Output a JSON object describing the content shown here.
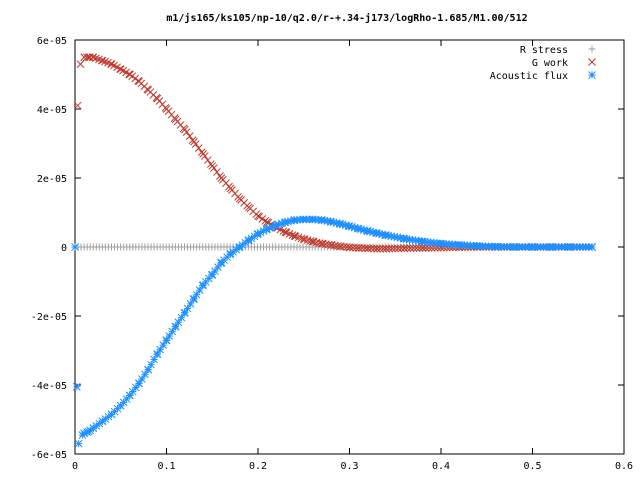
{
  "chart_data": {
    "type": "scatter",
    "title": "m1/js165/ks105/np-10/q2.0/r-+.34-j173/logRho-1.685/M1.00/512",
    "xlabel": "",
    "ylabel": "",
    "xlim": [
      0,
      0.6
    ],
    "ylim": [
      -6e-05,
      6e-05
    ],
    "x_ticks": [
      "0",
      "0.1",
      "0.2",
      "0.3",
      "0.4",
      "0.5",
      "0.6"
    ],
    "y_ticks": [
      "6e-05",
      "4e-05",
      "2e-05",
      "0",
      "-2e-05",
      "-4e-05",
      "-6e-05"
    ],
    "x_tick_values": [
      0,
      0.1,
      0.2,
      0.3,
      0.4,
      0.5,
      0.6
    ],
    "y_tick_values": [
      6e-05,
      4e-05,
      2e-05,
      0,
      -2e-05,
      -4e-05,
      -6e-05
    ],
    "grid": false,
    "legend_position": "top-right",
    "x_max_data": 0.565,
    "series": [
      {
        "name": "R stress",
        "marker": "plus",
        "color": "#a0a0a0",
        "x": [
          0,
          0.565
        ],
        "y": [
          0,
          0
        ]
      },
      {
        "name": "G work",
        "marker": "cross",
        "color": "#c0392b",
        "x": [
          0.003,
          0.006,
          0.01,
          0.015,
          0.02,
          0.03,
          0.04,
          0.05,
          0.06,
          0.07,
          0.08,
          0.09,
          0.1,
          0.11,
          0.12,
          0.13,
          0.14,
          0.15,
          0.16,
          0.17,
          0.18,
          0.19,
          0.2,
          0.21,
          0.22,
          0.23,
          0.24,
          0.25,
          0.26,
          0.27,
          0.28,
          0.29,
          0.3,
          0.31,
          0.32,
          0.33,
          0.34,
          0.36,
          0.38,
          0.4,
          0.42,
          0.44,
          0.46,
          0.48,
          0.5,
          0.52,
          0.54,
          0.565
        ],
        "y": [
          4.1e-05,
          5.3e-05,
          5.5e-05,
          5.5e-05,
          5.5e-05,
          5.4e-05,
          5.3e-05,
          5.15e-05,
          5e-05,
          4.8e-05,
          4.55e-05,
          4.3e-05,
          4e-05,
          3.7e-05,
          3.4e-05,
          3.05e-05,
          2.7e-05,
          2.35e-05,
          2e-05,
          1.7e-05,
          1.4e-05,
          1.15e-05,
          9e-06,
          7.2e-06,
          5.7e-06,
          4.3e-06,
          3.2e-06,
          2.3e-06,
          1.6e-06,
          1e-06,
          6e-07,
          2e-07,
          -1e-07,
          -3e-07,
          -4e-07,
          -5e-07,
          -5e-07,
          -4e-07,
          -3e-07,
          -2e-07,
          -1e-07,
          0,
          0,
          0,
          0,
          0,
          0,
          0
        ]
      },
      {
        "name": "Acoustic flux",
        "marker": "star",
        "color": "#1e90ff",
        "x": [
          0,
          0.002,
          0.004,
          0.008,
          0.01,
          0.015,
          0.02,
          0.03,
          0.04,
          0.05,
          0.06,
          0.07,
          0.08,
          0.09,
          0.1,
          0.11,
          0.12,
          0.13,
          0.14,
          0.15,
          0.16,
          0.17,
          0.18,
          0.19,
          0.2,
          0.21,
          0.22,
          0.23,
          0.24,
          0.25,
          0.26,
          0.27,
          0.28,
          0.29,
          0.3,
          0.31,
          0.32,
          0.33,
          0.34,
          0.36,
          0.38,
          0.4,
          0.42,
          0.44,
          0.46,
          0.48,
          0.5,
          0.52,
          0.54,
          0.565
        ],
        "y": [
          0,
          -4.05e-05,
          -5.7e-05,
          -5.45e-05,
          -5.4e-05,
          -5.35e-05,
          -5.25e-05,
          -5.05e-05,
          -4.85e-05,
          -4.6e-05,
          -4.3e-05,
          -3.95e-05,
          -3.55e-05,
          -3.1e-05,
          -2.7e-05,
          -2.3e-05,
          -1.9e-05,
          -1.5e-05,
          -1.1e-05,
          -8e-06,
          -4.5e-06,
          -2e-06,
          0,
          2e-06,
          3.8e-06,
          5.2e-06,
          6.3e-06,
          7.2e-06,
          7.8e-06,
          8e-06,
          8e-06,
          7.8e-06,
          7.3e-06,
          6.7e-06,
          6e-06,
          5.3e-06,
          4.6e-06,
          4e-06,
          3.4e-06,
          2.4e-06,
          1.6e-06,
          1e-06,
          6e-07,
          3e-07,
          1e-07,
          0,
          0,
          0,
          0,
          0
        ]
      }
    ]
  }
}
